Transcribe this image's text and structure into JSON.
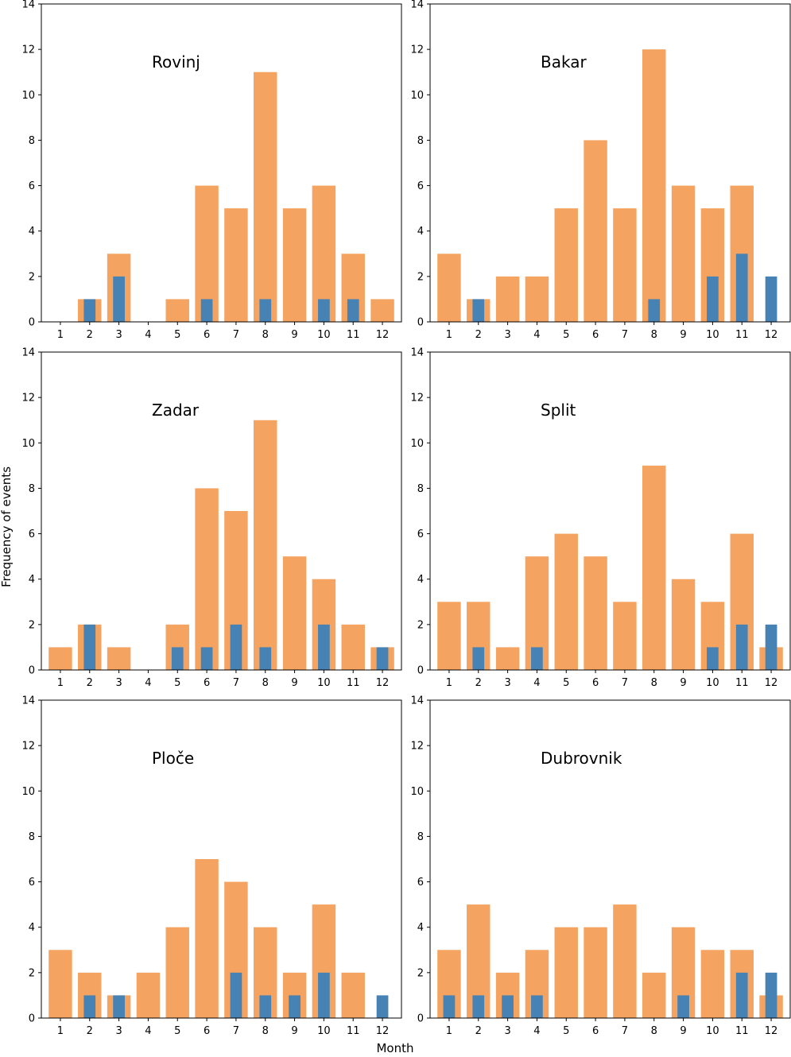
{
  "figure": {
    "xlabel": "Month",
    "ylabel": "Frequency of events"
  },
  "colors": {
    "orange": "#F4A460",
    "blue": "#4682B4",
    "axis": "#000000",
    "background": "#ffffff"
  },
  "chart_data": [
    {
      "type": "bar",
      "title": "Rovinj",
      "categories": [
        "1",
        "2",
        "3",
        "4",
        "5",
        "6",
        "7",
        "8",
        "9",
        "10",
        "11",
        "12"
      ],
      "ylim": [
        0,
        14
      ],
      "yticks": [
        0,
        2,
        4,
        6,
        8,
        10,
        12,
        14
      ],
      "series": [
        {
          "name": "orange",
          "values": [
            0,
            1,
            3,
            0,
            1,
            6,
            5,
            11,
            5,
            6,
            3,
            1
          ]
        },
        {
          "name": "blue",
          "values": [
            0,
            1,
            2,
            0,
            0,
            1,
            0,
            1,
            0,
            1,
            1,
            0
          ]
        }
      ]
    },
    {
      "type": "bar",
      "title": "Bakar",
      "categories": [
        "1",
        "2",
        "3",
        "4",
        "5",
        "6",
        "7",
        "8",
        "9",
        "10",
        "11",
        "12"
      ],
      "ylim": [
        0,
        14
      ],
      "yticks": [
        0,
        2,
        4,
        6,
        8,
        10,
        12,
        14
      ],
      "series": [
        {
          "name": "orange",
          "values": [
            3,
            1,
            2,
            2,
            5,
            8,
            5,
            12,
            6,
            5,
            6,
            0
          ]
        },
        {
          "name": "blue",
          "values": [
            0,
            1,
            0,
            0,
            0,
            0,
            0,
            1,
            0,
            2,
            3,
            2
          ]
        }
      ]
    },
    {
      "type": "bar",
      "title": "Zadar",
      "categories": [
        "1",
        "2",
        "3",
        "4",
        "5",
        "6",
        "7",
        "8",
        "9",
        "10",
        "11",
        "12"
      ],
      "ylim": [
        0,
        14
      ],
      "yticks": [
        0,
        2,
        4,
        6,
        8,
        10,
        12,
        14
      ],
      "series": [
        {
          "name": "orange",
          "values": [
            1,
            2,
            1,
            0,
            2,
            8,
            7,
            11,
            5,
            4,
            2,
            1
          ]
        },
        {
          "name": "blue",
          "values": [
            0,
            2,
            0,
            0,
            1,
            1,
            2,
            1,
            0,
            2,
            0,
            1
          ]
        }
      ]
    },
    {
      "type": "bar",
      "title": "Split",
      "categories": [
        "1",
        "2",
        "3",
        "4",
        "5",
        "6",
        "7",
        "8",
        "9",
        "10",
        "11",
        "12"
      ],
      "ylim": [
        0,
        14
      ],
      "yticks": [
        0,
        2,
        4,
        6,
        8,
        10,
        12,
        14
      ],
      "series": [
        {
          "name": "orange",
          "values": [
            3,
            3,
            1,
            5,
            6,
            5,
            3,
            9,
            4,
            3,
            6,
            1
          ]
        },
        {
          "name": "blue",
          "values": [
            0,
            1,
            0,
            1,
            0,
            0,
            0,
            0,
            0,
            1,
            2,
            2
          ]
        }
      ]
    },
    {
      "type": "bar",
      "title": "Ploče",
      "categories": [
        "1",
        "2",
        "3",
        "4",
        "5",
        "6",
        "7",
        "8",
        "9",
        "10",
        "11",
        "12"
      ],
      "ylim": [
        0,
        14
      ],
      "yticks": [
        0,
        2,
        4,
        6,
        8,
        10,
        12,
        14
      ],
      "series": [
        {
          "name": "orange",
          "values": [
            3,
            2,
            1,
            2,
            4,
            7,
            6,
            4,
            2,
            5,
            2,
            0
          ]
        },
        {
          "name": "blue",
          "values": [
            0,
            1,
            1,
            0,
            0,
            0,
            2,
            1,
            1,
            2,
            0,
            1
          ]
        }
      ]
    },
    {
      "type": "bar",
      "title": "Dubrovnik",
      "categories": [
        "1",
        "2",
        "3",
        "4",
        "5",
        "6",
        "7",
        "8",
        "9",
        "10",
        "11",
        "12"
      ],
      "ylim": [
        0,
        14
      ],
      "yticks": [
        0,
        2,
        4,
        6,
        8,
        10,
        12,
        14
      ],
      "series": [
        {
          "name": "orange",
          "values": [
            3,
            5,
            2,
            3,
            4,
            4,
            5,
            2,
            4,
            3,
            3,
            1
          ]
        },
        {
          "name": "blue",
          "values": [
            1,
            1,
            1,
            1,
            0,
            0,
            0,
            0,
            1,
            0,
            2,
            2
          ]
        }
      ]
    }
  ]
}
